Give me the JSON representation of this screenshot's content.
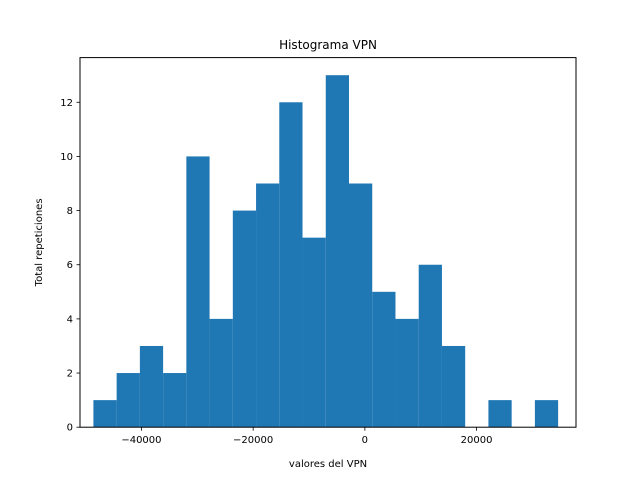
{
  "chart_data": {
    "type": "bar",
    "title": "Histograma VPN",
    "xlabel": "valores del VPN",
    "ylabel": "Total repeticiones",
    "xlim": [
      -51000,
      37800
    ],
    "ylim": [
      0,
      13.65
    ],
    "xticks": [
      -40000,
      -20000,
      0,
      20000
    ],
    "xtick_labels": [
      "−40000",
      "−20000",
      "0",
      "20000"
    ],
    "yticks": [
      0,
      2,
      4,
      6,
      8,
      10,
      12
    ],
    "ytick_labels": [
      "0",
      "2",
      "4",
      "6",
      "8",
      "10",
      "12"
    ],
    "bin_start": -48600,
    "bin_width": 4160,
    "counts": [
      1,
      2,
      3,
      2,
      10,
      4,
      8,
      9,
      12,
      7,
      13,
      9,
      5,
      4,
      6,
      3,
      0,
      1,
      0,
      1
    ],
    "bar_color": "#1f77b4",
    "grid": false
  }
}
